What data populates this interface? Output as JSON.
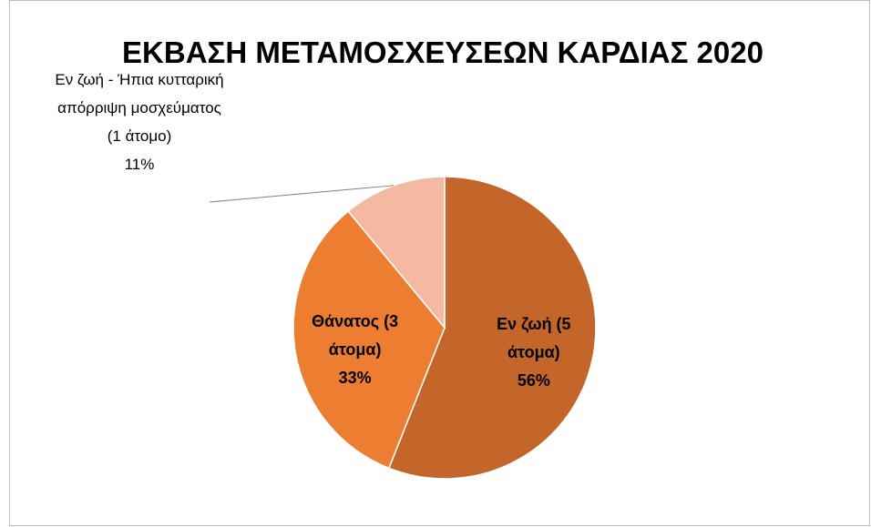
{
  "chart_data": {
    "type": "pie",
    "title": "ΕΚΒΑΣΗ ΜΕΤΑΜΟΣΧΕΥΣΕΩΝ ΚΑΡΔΙΑΣ 2020",
    "categories": [
      "Εν ζωή (5 άτομα)",
      "Θάνατος (3 άτομα)",
      "Εν ζωή - Ήπια κυτταρική απόρριψη μοσχεύματος (1 άτομο)"
    ],
    "values": [
      56,
      33,
      11
    ],
    "value_labels": [
      "56%",
      "33%",
      "11%"
    ],
    "colors": [
      "#c4652a",
      "#ed7d31",
      "#f4b9a0"
    ]
  }
}
